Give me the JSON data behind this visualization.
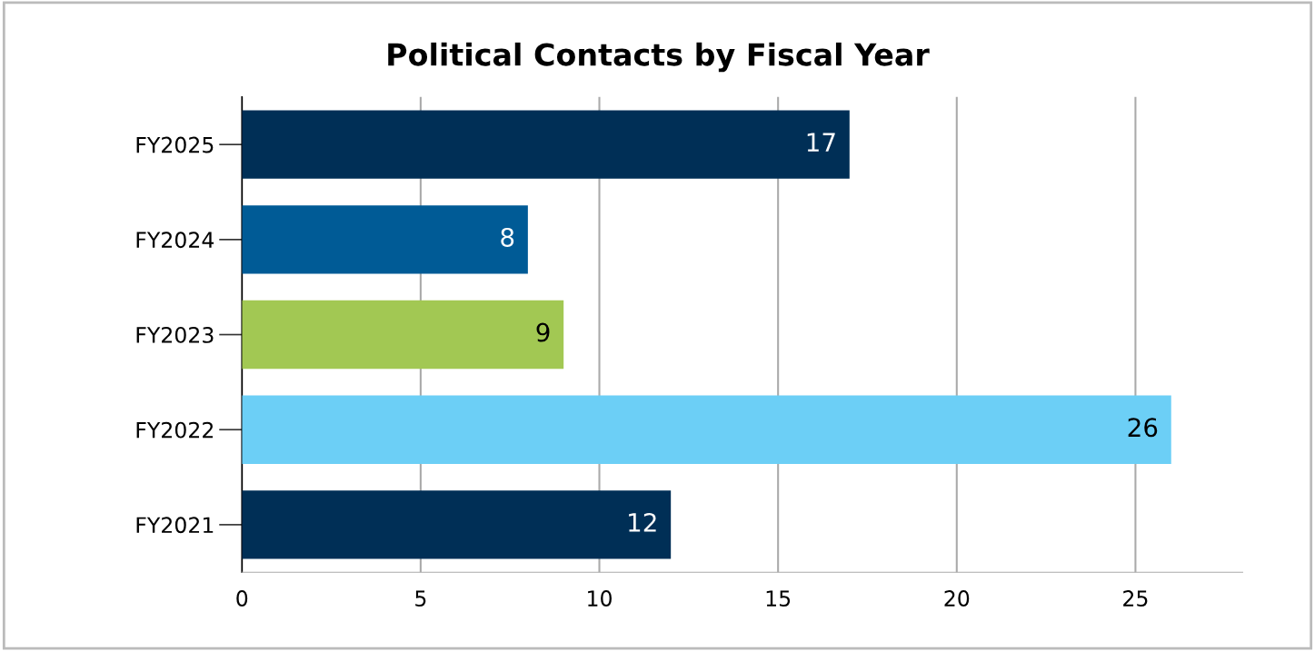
{
  "chart_data": {
    "type": "bar",
    "orientation": "horizontal",
    "title": "Political Contacts by Fiscal Year",
    "categories": [
      "FY2025",
      "FY2024",
      "FY2023",
      "FY2022",
      "FY2021"
    ],
    "values": [
      17,
      8,
      9,
      26,
      12
    ],
    "colors": [
      "#002f56",
      "#005b96",
      "#a2c853",
      "#6ccff6",
      "#002f56"
    ],
    "xlim": [
      0,
      28
    ],
    "xticks": [
      0,
      5,
      10,
      15,
      20,
      25
    ],
    "grid": "x",
    "data_labels": true
  }
}
